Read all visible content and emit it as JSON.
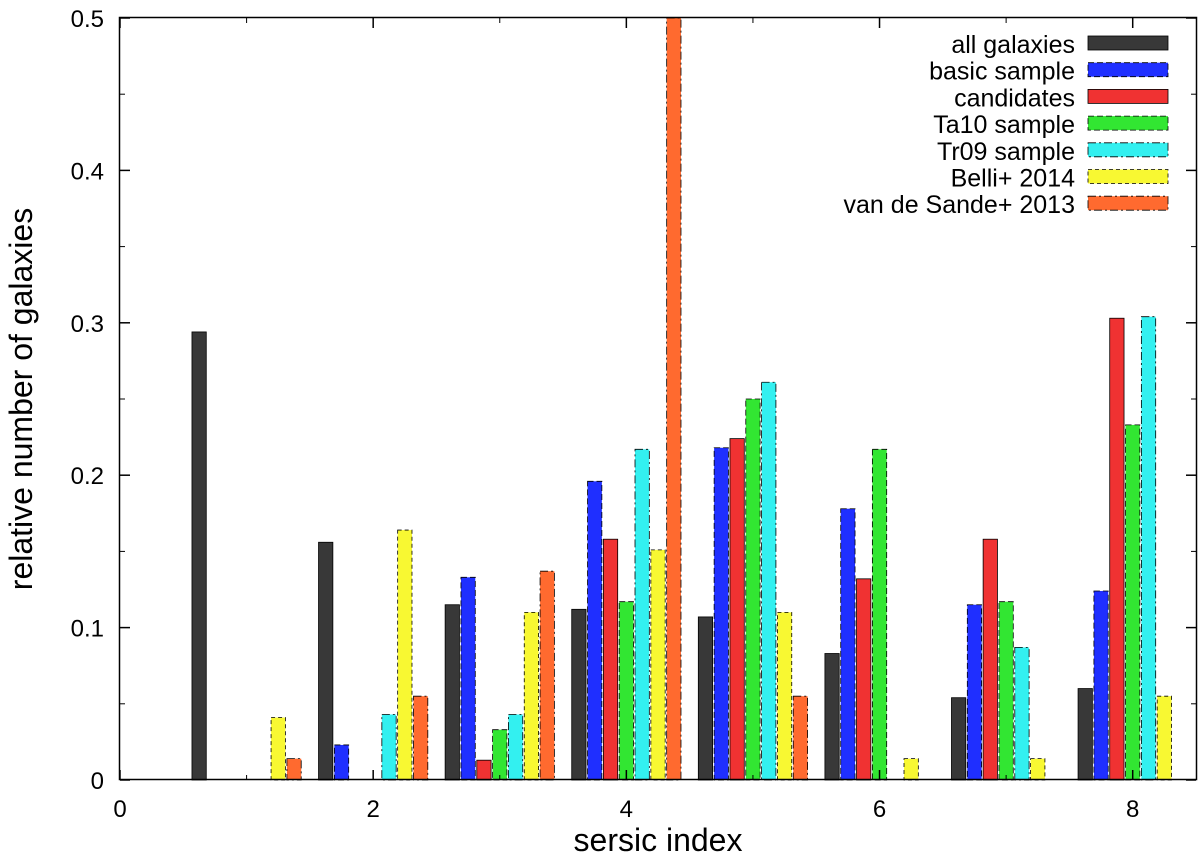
{
  "chart_data": {
    "type": "bar",
    "xlabel": "sersic index",
    "ylabel": "relative number of galaxies",
    "xlim": [
      0,
      8.5
    ],
    "ylim": [
      0,
      0.5
    ],
    "xticks": [
      "0",
      "2",
      "4",
      "6",
      "8"
    ],
    "yticks": [
      "0",
      "0.1",
      "0.2",
      "0.3",
      "0.4",
      "0.5"
    ],
    "grid": false,
    "legend_position": "top-right",
    "bin_centers": [
      1,
      2,
      3,
      4,
      5,
      6,
      7,
      8
    ],
    "series": [
      {
        "name": "all galaxies",
        "color": "#383838",
        "values": [
          0.294,
          0.156,
          0.115,
          0.112,
          0.107,
          0.083,
          0.054,
          0.06
        ]
      },
      {
        "name": "basic sample",
        "color": "#1f2fff",
        "values": [
          0.0,
          0.023,
          0.133,
          0.196,
          0.218,
          0.178,
          0.115,
          0.124
        ]
      },
      {
        "name": "candidates",
        "color": "#f03232",
        "values": [
          0.0,
          0.0,
          0.013,
          0.158,
          0.224,
          0.132,
          0.158,
          0.303
        ]
      },
      {
        "name": "Ta10 sample",
        "color": "#32e632",
        "values": [
          0.0,
          0.0,
          0.033,
          0.117,
          0.25,
          0.217,
          0.117,
          0.233
        ]
      },
      {
        "name": "Tr09 sample",
        "color": "#33f0f0",
        "values": [
          0.0,
          0.043,
          0.043,
          0.217,
          0.261,
          0.0,
          0.087,
          0.304
        ]
      },
      {
        "name": "Belli+ 2014",
        "color": "#f8f832",
        "values": [
          0.041,
          0.164,
          0.11,
          0.151,
          0.11,
          0.014,
          0.014,
          0.055
        ]
      },
      {
        "name": "van de Sande+ 2013",
        "color": "#ff6a2f",
        "values": [
          0.014,
          0.055,
          0.137,
          0.5,
          0.055,
          0.0,
          0.0,
          0.0
        ]
      }
    ]
  }
}
